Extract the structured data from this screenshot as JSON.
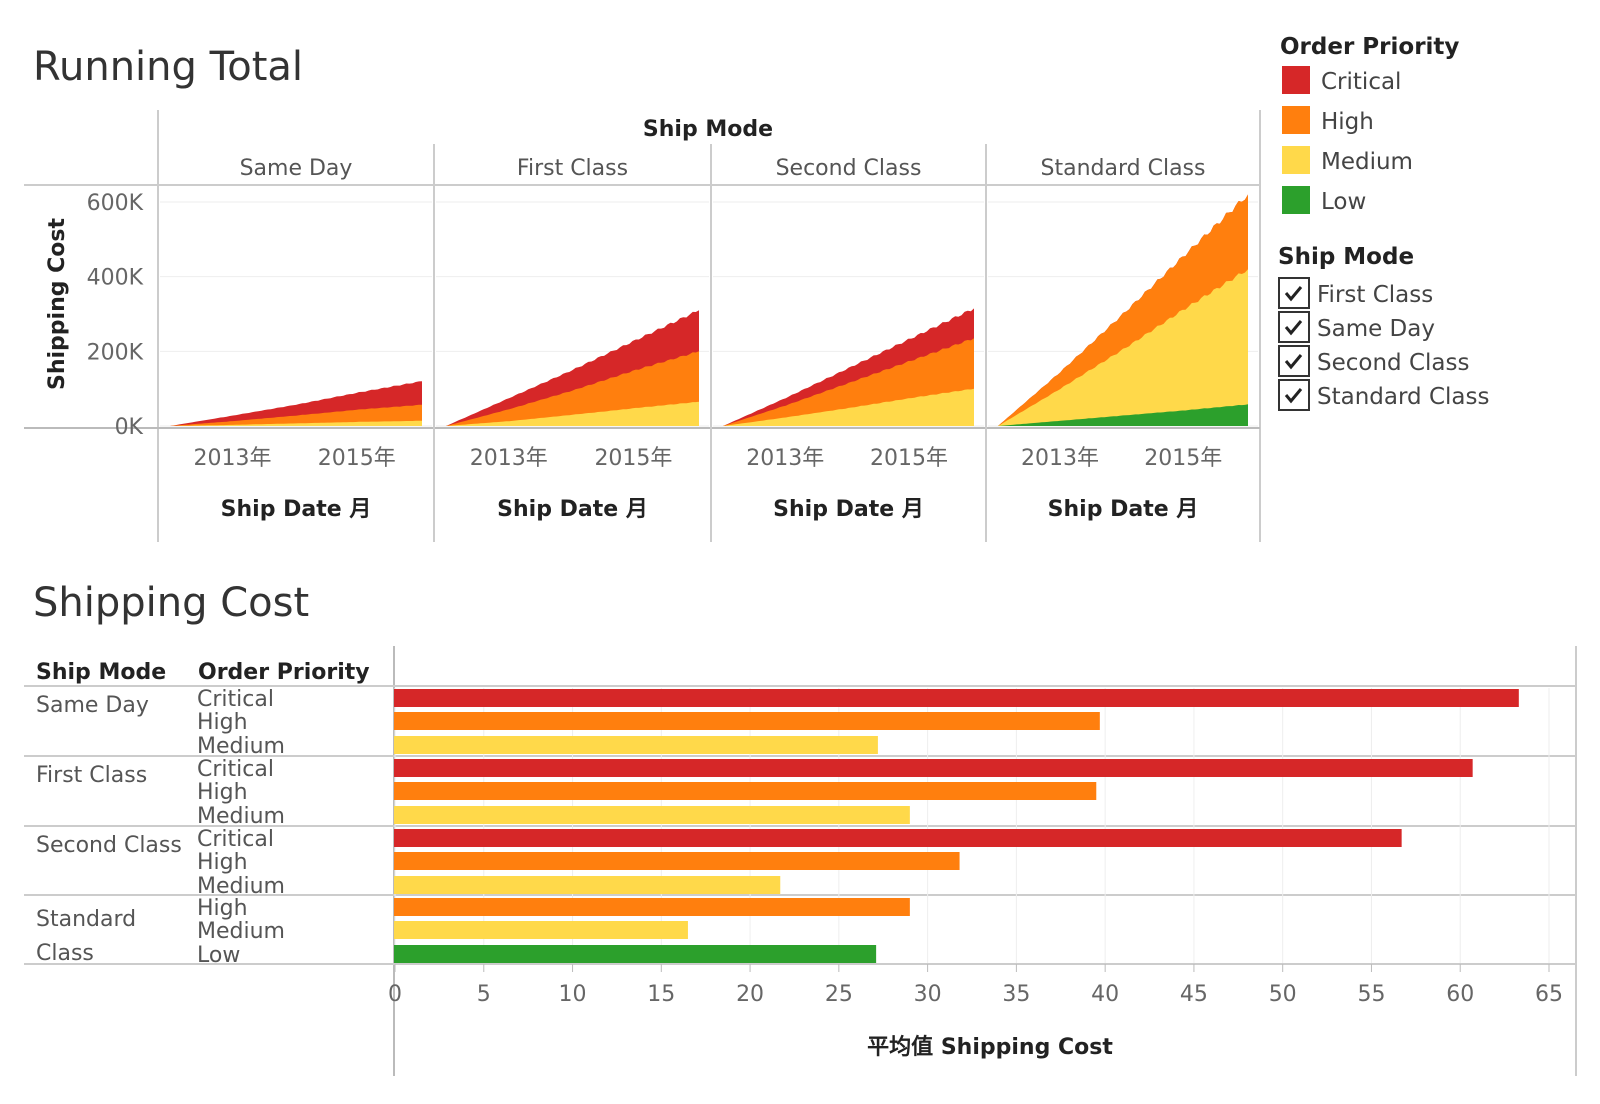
{
  "colors": {
    "Critical": "#d62728",
    "High": "#ff7f0e",
    "Medium": "#ffd94a",
    "Low": "#2ca02c"
  },
  "running_total": {
    "title": "Running Total",
    "column_header": "Ship Mode",
    "y_axis_label": "Shipping Cost",
    "x_axis_label": "Ship Date 月"
  },
  "legend": {
    "title": "Order Priority",
    "items": [
      {
        "label": "Critical",
        "color": "#d62728"
      },
      {
        "label": "High",
        "color": "#ff7f0e"
      },
      {
        "label": "Medium",
        "color": "#ffd94a"
      },
      {
        "label": "Low",
        "color": "#2ca02c"
      }
    ]
  },
  "filter": {
    "title": "Ship Mode",
    "items": [
      {
        "label": "First Class",
        "checked": true
      },
      {
        "label": "Same Day",
        "checked": true
      },
      {
        "label": "Second Class",
        "checked": true
      },
      {
        "label": "Standard Class",
        "checked": true
      }
    ]
  },
  "shipping_cost": {
    "title": "Shipping Cost",
    "col_headers": [
      "Ship Mode",
      "Order Priority"
    ],
    "x_axis_label": "平均值 Shipping Cost"
  },
  "chart_data": [
    {
      "type": "area",
      "stacked": true,
      "title": "Running Total",
      "xlabel": "Ship Date 月",
      "ylabel": "Shipping Cost",
      "ylim": [
        0,
        600000
      ],
      "y_ticks": [
        "0K",
        "200K",
        "400K",
        "600K"
      ],
      "x_ticks": [
        "2013年",
        "2015年"
      ],
      "x": [
        "2012",
        "2013",
        "2014",
        "2015",
        "2016"
      ],
      "panels": [
        {
          "name": "Same Day",
          "series": [
            {
              "name": "Low",
              "values": [
                0,
                0,
                0,
                0,
                0
              ]
            },
            {
              "name": "Medium",
              "values": [
                0,
                3000,
                7000,
                11000,
                14000
              ]
            },
            {
              "name": "High",
              "values": [
                0,
                13000,
                28000,
                44000,
                57000
              ]
            },
            {
              "name": "Critical",
              "values": [
                0,
                28000,
                57000,
                90000,
                120000
              ]
            }
          ]
        },
        {
          "name": "First Class",
          "series": [
            {
              "name": "Low",
              "values": [
                0,
                0,
                0,
                0,
                0
              ]
            },
            {
              "name": "Medium",
              "values": [
                0,
                13000,
                30000,
                48000,
                65000
              ]
            },
            {
              "name": "High",
              "values": [
                0,
                45000,
                95000,
                150000,
                200000
              ]
            },
            {
              "name": "Critical",
              "values": [
                0,
                75000,
                150000,
                230000,
                310000
              ]
            }
          ]
        },
        {
          "name": "Second Class",
          "series": [
            {
              "name": "Low",
              "values": [
                0,
                0,
                0,
                0,
                0
              ]
            },
            {
              "name": "Medium",
              "values": [
                0,
                23000,
                48000,
                75000,
                100000
              ]
            },
            {
              "name": "High",
              "values": [
                0,
                55000,
                115000,
                175000,
                235000
              ]
            },
            {
              "name": "Critical",
              "values": [
                0,
                75000,
                155000,
                235000,
                315000
              ]
            }
          ]
        },
        {
          "name": "Standard Class",
          "series": [
            {
              "name": "Low",
              "values": [
                0,
                14000,
                28000,
                42000,
                58000
              ]
            },
            {
              "name": "Medium",
              "values": [
                0,
                100000,
                205000,
                315000,
                420000
              ]
            },
            {
              "name": "High",
              "values": [
                0,
                145000,
                300000,
                460000,
                620000
              ]
            },
            {
              "name": "Critical",
              "values": [
                0,
                145000,
                300000,
                460000,
                620000
              ]
            }
          ]
        }
      ]
    },
    {
      "type": "bar",
      "orientation": "horizontal",
      "title": "Shipping Cost",
      "xlabel": "平均值 Shipping Cost",
      "xlim": [
        0,
        65
      ],
      "x_ticks": [
        0,
        5,
        10,
        15,
        20,
        25,
        30,
        35,
        40,
        45,
        50,
        55,
        60,
        65
      ],
      "groups": [
        {
          "ship_mode": "Same Day",
          "bars": [
            {
              "priority": "Critical",
              "value": 63.3
            },
            {
              "priority": "High",
              "value": 39.7
            },
            {
              "priority": "Medium",
              "value": 27.2
            }
          ]
        },
        {
          "ship_mode": "First Class",
          "bars": [
            {
              "priority": "Critical",
              "value": 60.7
            },
            {
              "priority": "High",
              "value": 39.5
            },
            {
              "priority": "Medium",
              "value": 29.0
            }
          ]
        },
        {
          "ship_mode": "Second Class",
          "bars": [
            {
              "priority": "Critical",
              "value": 56.7
            },
            {
              "priority": "High",
              "value": 31.8
            },
            {
              "priority": "Medium",
              "value": 21.7
            }
          ]
        },
        {
          "ship_mode": "Standard Class",
          "bars": [
            {
              "priority": "High",
              "value": 29.0
            },
            {
              "priority": "Medium",
              "value": 16.5
            },
            {
              "priority": "Low",
              "value": 27.1
            }
          ]
        }
      ]
    }
  ]
}
